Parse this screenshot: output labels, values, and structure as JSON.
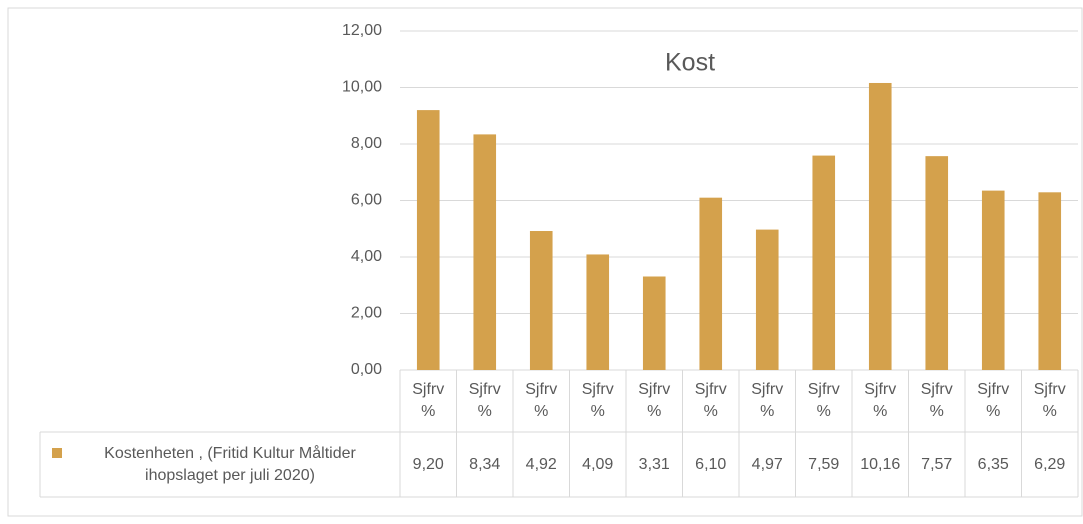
{
  "chart_data": {
    "type": "bar",
    "title": "Kost",
    "categories": [
      "Sjfrv %",
      "Sjfrv %",
      "Sjfrv %",
      "Sjfrv %",
      "Sjfrv %",
      "Sjfrv %",
      "Sjfrv %",
      "Sjfrv %",
      "Sjfrv %",
      "Sjfrv %",
      "Sjfrv %",
      "Sjfrv %"
    ],
    "series": [
      {
        "name": "Kostenheten , (Fritid Kultur Måltider ihopslaget per juli 2020)",
        "color": "#d4a14c",
        "values": [
          9.2,
          8.34,
          4.92,
          4.09,
          3.31,
          6.1,
          4.97,
          7.59,
          10.16,
          7.57,
          6.35,
          6.29
        ],
        "value_labels": [
          "9,20",
          "8,34",
          "4,92",
          "4,09",
          "3,31",
          "6,10",
          "4,97",
          "7,59",
          "10,16",
          "7,57",
          "6,35",
          "6,29"
        ]
      }
    ],
    "ylim": [
      0,
      12
    ],
    "yticks": [
      {
        "value": 0,
        "label": "0,00"
      },
      {
        "value": 2,
        "label": "2,00"
      },
      {
        "value": 4,
        "label": "4,00"
      },
      {
        "value": 6,
        "label": "6,00"
      },
      {
        "value": 8,
        "label": "8,00"
      },
      {
        "value": 10,
        "label": "10,00"
      },
      {
        "value": 12,
        "label": "12,00"
      }
    ],
    "grid": true,
    "legend": "data-table"
  }
}
